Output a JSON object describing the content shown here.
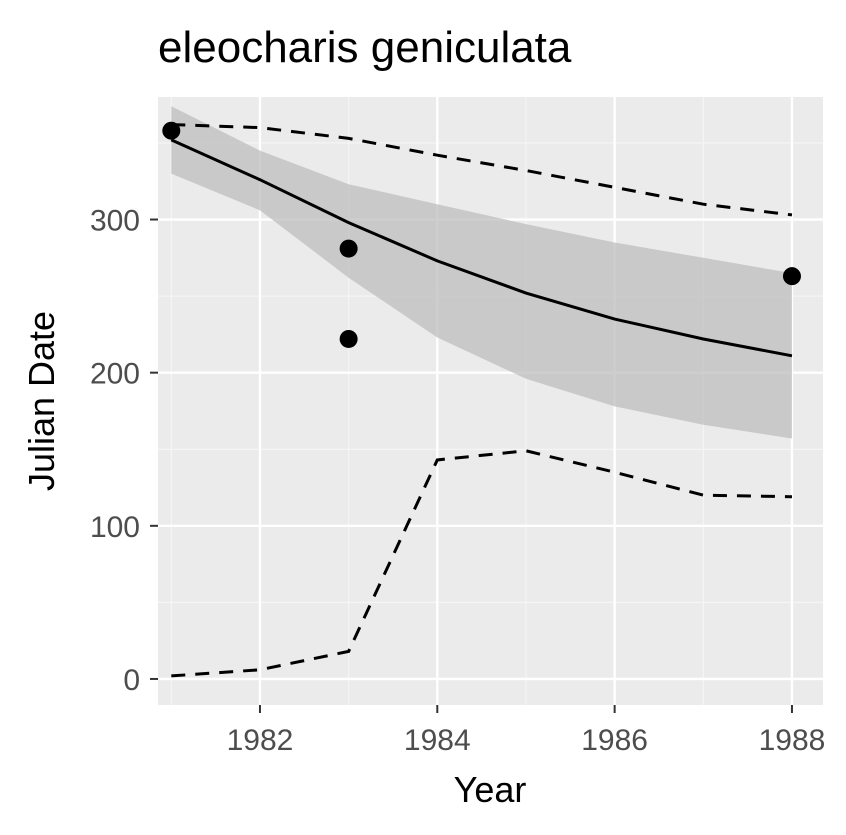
{
  "colors": {
    "panel_background": "#ebebeb",
    "grid_major": "#ffffff",
    "grid_minor": "#f5f5f5",
    "ribbon": "#bebebe",
    "line": "#000000",
    "points": "#000000",
    "tick_text": "#4d4d4d",
    "tick_marks": "#333333"
  },
  "chart_data": {
    "type": "line",
    "title": "eleocharis geniculata",
    "xlabel": "Year",
    "ylabel": "Julian Date",
    "xlim": [
      1980.85,
      1988.35
    ],
    "ylim": [
      -17,
      380
    ],
    "x_ticks": [
      1982,
      1984,
      1986,
      1988
    ],
    "x_tick_labels": [
      "1982",
      "1984",
      "1986",
      "1988"
    ],
    "y_ticks": [
      0,
      100,
      200,
      300
    ],
    "y_tick_labels": [
      "0",
      "100",
      "200",
      "300"
    ],
    "x_minor_ticks": [
      1981,
      1983,
      1985,
      1987
    ],
    "y_minor_ticks": [
      50,
      150,
      250,
      350
    ],
    "grid": true,
    "points": [
      {
        "x": 1981,
        "y": 358
      },
      {
        "x": 1983,
        "y": 281
      },
      {
        "x": 1983,
        "y": 222
      },
      {
        "x": 1988,
        "y": 263
      }
    ],
    "fit_line": {
      "x": [
        1981,
        1982,
        1983,
        1984,
        1985,
        1986,
        1987,
        1988
      ],
      "y": [
        352,
        326,
        298,
        273,
        252,
        235,
        222,
        211
      ]
    },
    "confidence_band": {
      "x": [
        1981,
        1982,
        1983,
        1984,
        1985,
        1986,
        1987,
        1988
      ],
      "lower": [
        330,
        306,
        262,
        223,
        196,
        178,
        166,
        157
      ],
      "upper": [
        374,
        345,
        323,
        310,
        297,
        285,
        275,
        265
      ]
    },
    "upper_bound_dashed": {
      "x": [
        1981,
        1982,
        1983,
        1984,
        1985,
        1986,
        1987,
        1988
      ],
      "y": [
        362,
        360,
        353,
        342,
        332,
        321,
        310,
        303
      ]
    },
    "lower_bound_dashed": {
      "x": [
        1981,
        1982,
        1983,
        1984,
        1985,
        1986,
        1987,
        1988
      ],
      "y": [
        2,
        6,
        18,
        143,
        149,
        135,
        120,
        119
      ]
    }
  }
}
